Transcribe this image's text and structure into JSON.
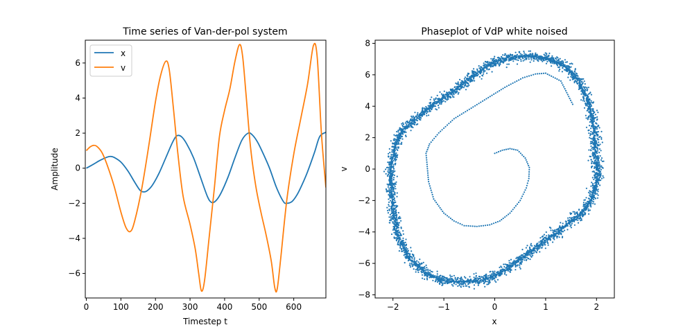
{
  "chart_data": [
    {
      "type": "line",
      "title": "Time series of Van-der-pol system",
      "xlabel": "Timestep t",
      "ylabel": "Amplitude",
      "xlim": [
        -3,
        693
      ],
      "ylim": [
        -7.4,
        7.3
      ],
      "xticks": [
        0,
        100,
        200,
        300,
        400,
        500,
        600
      ],
      "yticks": [
        -6,
        -4,
        -2,
        0,
        2,
        4,
        6
      ],
      "grid": false,
      "legend": "top-left",
      "series": [
        {
          "name": "x",
          "color": "#1f77b4",
          "x": [
            0,
            20,
            40,
            60,
            70,
            80,
            100,
            120,
            140,
            155,
            165,
            175,
            190,
            210,
            230,
            250,
            262,
            275,
            290,
            310,
            330,
            350,
            362,
            375,
            390,
            410,
            430,
            450,
            468,
            480,
            495,
            510,
            530,
            550,
            570,
            580,
            595,
            610,
            625,
            640,
            660,
            675,
            693
          ],
          "y": [
            0.0,
            0.22,
            0.45,
            0.63,
            0.67,
            0.62,
            0.35,
            -0.15,
            -0.8,
            -1.25,
            -1.35,
            -1.3,
            -1.0,
            -0.3,
            0.6,
            1.5,
            1.85,
            1.8,
            1.4,
            0.6,
            -0.5,
            -1.6,
            -1.95,
            -1.85,
            -1.4,
            -0.5,
            0.6,
            1.6,
            2.0,
            1.9,
            1.5,
            0.9,
            0.0,
            -1.1,
            -1.9,
            -2.0,
            -1.9,
            -1.5,
            -0.9,
            -0.2,
            0.9,
            1.8,
            2.05
          ]
        },
        {
          "name": "v",
          "color": "#ff7f0e",
          "x": [
            0,
            10,
            20,
            30,
            45,
            60,
            80,
            100,
            115,
            128,
            140,
            160,
            180,
            200,
            215,
            230,
            240,
            252,
            265,
            280,
            300,
            315,
            325,
            333,
            342,
            355,
            370,
            385,
            400,
            415,
            430,
            443,
            452,
            462,
            475,
            490,
            505,
            520,
            535,
            545,
            552,
            562,
            580,
            600,
            620,
            640,
            657,
            668,
            680,
            693
          ],
          "y": [
            1.0,
            1.2,
            1.3,
            1.25,
            0.9,
            0.2,
            -1.0,
            -2.5,
            -3.4,
            -3.6,
            -3.0,
            -1.2,
            1.2,
            3.8,
            5.3,
            6.1,
            5.6,
            3.4,
            0.8,
            -1.6,
            -3.2,
            -4.6,
            -6.0,
            -7.0,
            -6.4,
            -4.0,
            -1.2,
            1.8,
            3.3,
            4.5,
            6.1,
            7.05,
            6.4,
            4.2,
            1.2,
            -1.0,
            -2.5,
            -3.8,
            -5.3,
            -6.8,
            -6.9,
            -5.2,
            -1.8,
            0.8,
            2.8,
            4.8,
            7.0,
            6.3,
            2.0,
            -1.1
          ]
        }
      ]
    },
    {
      "type": "scatter",
      "title": "Phaseplot of VdP white noised",
      "xlabel": "x",
      "ylabel": "v",
      "xlim": [
        -2.35,
        2.35
      ],
      "ylim": [
        -8.2,
        8.2
      ],
      "xticks": [
        -2,
        -1,
        0,
        1,
        2
      ],
      "yticks": [
        -8,
        -6,
        -4,
        -2,
        0,
        2,
        4,
        6,
        8
      ],
      "grid": false,
      "series": [
        {
          "name": "",
          "color": "#1f77b4",
          "transient": {
            "x": [
              0.0,
              0.15,
              0.3,
              0.45,
              0.6,
              0.68,
              0.67,
              0.62,
              0.5,
              0.3,
              0.1,
              -0.1,
              -0.35,
              -0.6,
              -0.8,
              -1.0,
              -1.2,
              -1.3,
              -1.33,
              -1.35,
              -1.28,
              -1.1,
              -0.8,
              -0.5,
              -0.2,
              0.2,
              0.55,
              0.8,
              1.0,
              1.3,
              1.55
            ],
            "y": [
              1.0,
              1.2,
              1.3,
              1.2,
              0.7,
              0.1,
              -0.6,
              -1.2,
              -2.0,
              -2.8,
              -3.3,
              -3.55,
              -3.65,
              -3.6,
              -3.3,
              -2.8,
              -1.9,
              -0.8,
              0.3,
              1.0,
              1.6,
              2.3,
              3.2,
              3.8,
              4.4,
              5.2,
              5.8,
              6.05,
              6.1,
              5.6,
              4.0
            ]
          },
          "cycle": {
            "x": [
              2.0,
              1.95,
              1.85,
              1.65,
              1.4,
              1.1,
              0.7,
              0.3,
              0.0,
              -0.4,
              -0.8,
              -1.2,
              -1.55,
              -1.8,
              -1.95,
              -2.05,
              -2.0,
              -1.9,
              -1.7,
              -1.4,
              -1.1,
              -0.7,
              -0.3,
              0.0,
              0.4,
              0.8,
              1.2,
              1.55,
              1.8,
              1.95,
              2.05,
              2.0
            ],
            "y": [
              0.0,
              2.5,
              4.2,
              5.6,
              6.5,
              7.0,
              7.2,
              7.1,
              6.8,
              6.0,
              5.0,
              4.1,
              3.2,
              2.5,
              1.6,
              0.0,
              -2.5,
              -4.2,
              -5.6,
              -6.5,
              -7.0,
              -7.2,
              -7.1,
              -6.8,
              -6.0,
              -5.0,
              -4.1,
              -3.2,
              -2.5,
              -1.6,
              0.0,
              0.0
            ]
          }
        }
      ]
    }
  ]
}
